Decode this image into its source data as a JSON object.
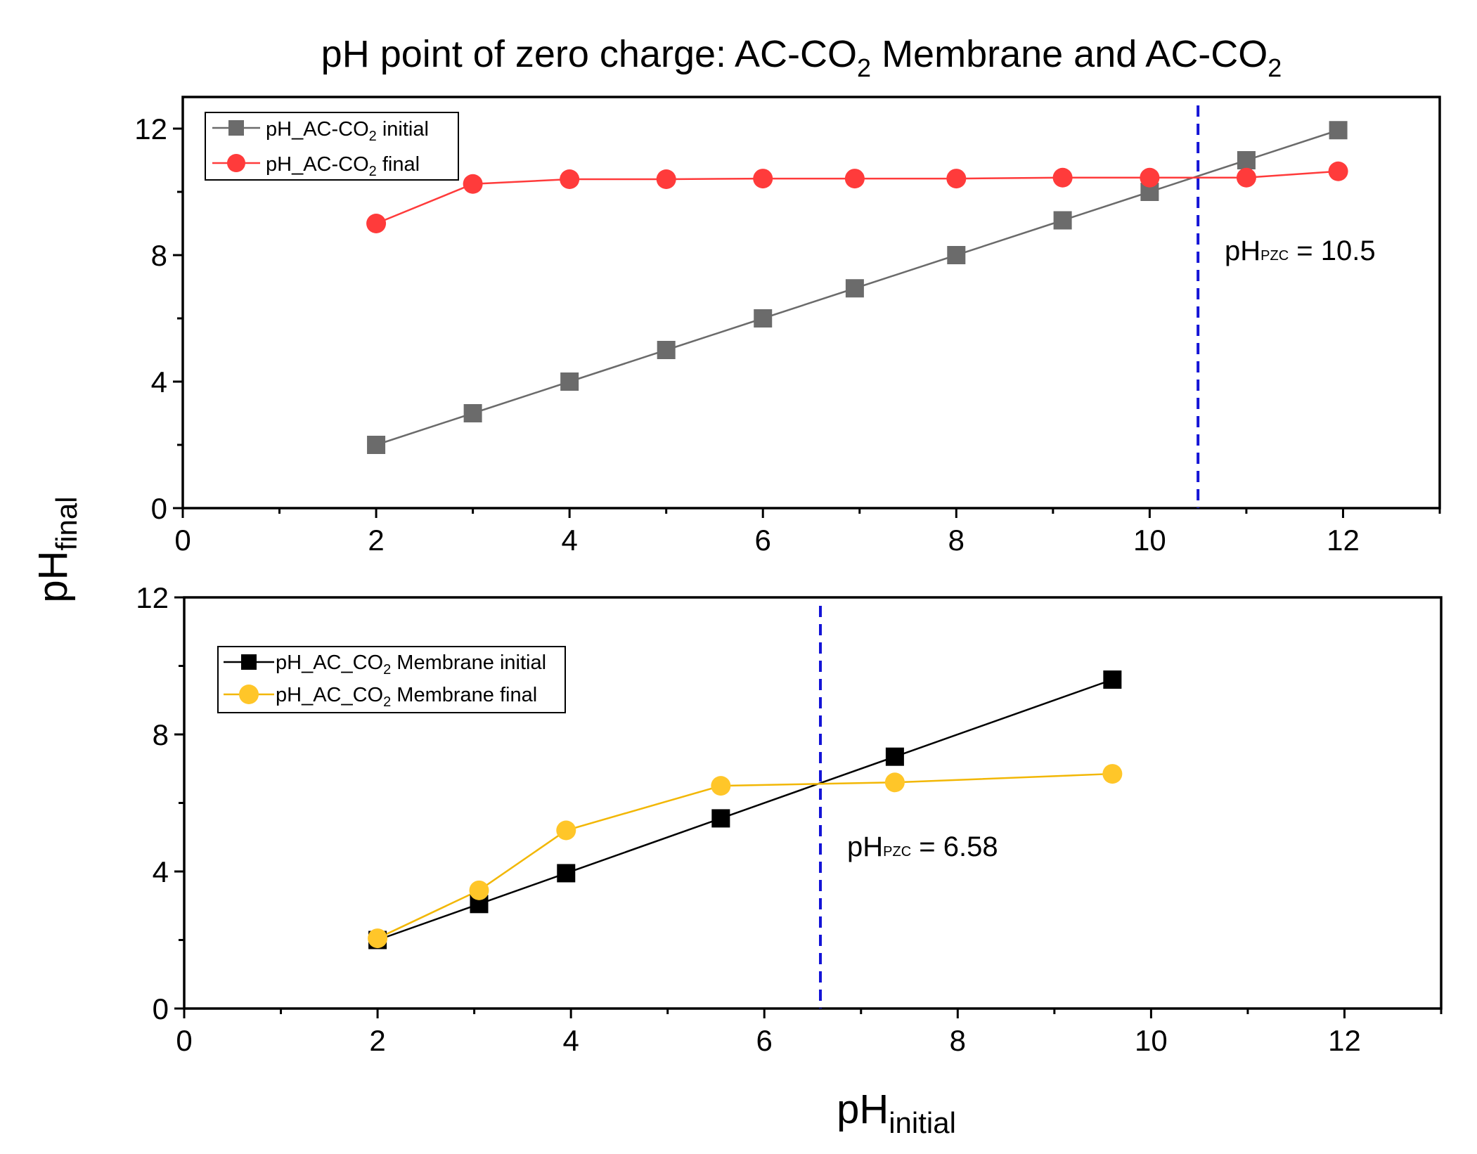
{
  "title": {
    "prefix": "pH point of zero charge: AC-CO",
    "sub1": "2",
    "middle": " Membrane  and AC-CO",
    "sub2": "2"
  },
  "ylabel": {
    "main": "pH",
    "sub": "final"
  },
  "xlabel": {
    "main": "pH",
    "sub": "initial"
  },
  "chart_data": [
    {
      "type": "line",
      "xlim": [
        0,
        13
      ],
      "ylim": [
        0,
        13
      ],
      "xticks": [
        0,
        2,
        4,
        6,
        8,
        10,
        12
      ],
      "yticks": [
        0,
        4,
        8,
        12
      ],
      "series": [
        {
          "name": "pH_AC-CO2 initial",
          "label_main": "pH_AC-CO",
          "label_sub": "2",
          "label_suffix": " initial",
          "marker": "square",
          "color": "#6b6b6b",
          "line_color": "#6b6b6b",
          "x": [
            2,
            3,
            4,
            5,
            6,
            6.95,
            8,
            9.1,
            10,
            11,
            11.95
          ],
          "y": [
            2,
            3,
            4,
            5,
            6,
            6.95,
            8,
            9.1,
            10,
            11,
            11.95
          ]
        },
        {
          "name": "pH_AC-CO2 final",
          "label_main": "pH_AC-CO",
          "label_sub": "2",
          "label_suffix": " final",
          "marker": "circle",
          "color": "#ff3b3b",
          "line_color": "#ff3b3b",
          "x": [
            2,
            3,
            4,
            5,
            6,
            6.95,
            8,
            9.1,
            10,
            11,
            11.95
          ],
          "y": [
            9.0,
            10.25,
            10.4,
            10.4,
            10.42,
            10.42,
            10.42,
            10.45,
            10.45,
            10.45,
            10.65
          ]
        }
      ],
      "pzc": {
        "x": 10.5,
        "label_main": "pH",
        "label_sub": "PZC",
        "label_value": " = 10.5",
        "color": "#1414d6"
      }
    },
    {
      "type": "line",
      "xlim": [
        0,
        13
      ],
      "ylim": [
        0,
        12
      ],
      "xticks": [
        0,
        2,
        4,
        6,
        8,
        10,
        12
      ],
      "yticks": [
        0,
        4,
        8,
        12
      ],
      "series": [
        {
          "name": "pH_AC_CO2 Membrane initial",
          "label_main": "pH_AC_CO",
          "label_sub": "2",
          "label_suffix": " Membrane initial",
          "marker": "square",
          "color": "#000000",
          "line_color": "#000000",
          "x": [
            2,
            3.05,
            3.95,
            5.55,
            7.35,
            9.6
          ],
          "y": [
            2,
            3.05,
            3.95,
            5.55,
            7.35,
            9.6
          ]
        },
        {
          "name": "pH_AC_CO2 Membrane final",
          "label_main": "pH_AC_CO",
          "label_sub": "2",
          "label_suffix": " Membrane final",
          "marker": "circle",
          "color": "#ffc629",
          "line_color": "#f2b705",
          "x": [
            2,
            3.05,
            3.95,
            5.55,
            7.35,
            9.6
          ],
          "y": [
            2.05,
            3.45,
            5.2,
            6.5,
            6.6,
            6.85
          ]
        }
      ],
      "pzc": {
        "x": 6.58,
        "label_main": "pH",
        "label_sub": "PZC",
        "label_value": " = 6.58",
        "color": "#1414d6"
      }
    }
  ]
}
